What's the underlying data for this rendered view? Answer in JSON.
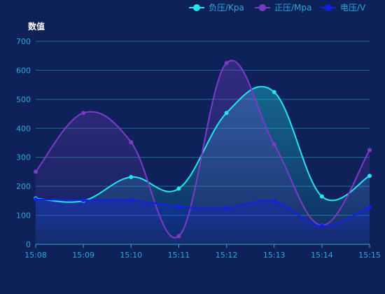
{
  "chart_data": {
    "type": "line",
    "smooth": true,
    "area_fill": true,
    "ylabel": "数值",
    "ylim": [
      0,
      700
    ],
    "y_ticks": [
      0,
      100,
      200,
      300,
      400,
      500,
      600,
      700
    ],
    "categories": [
      "15:08",
      "15:09",
      "15:10",
      "15:11",
      "15:12",
      "15:13",
      "15:14",
      "15:15"
    ],
    "series": [
      {
        "name": "负压/Kpa",
        "color": "#22e6f2",
        "values": [
          158,
          150,
          232,
          192,
          453,
          525,
          165,
          236
        ]
      },
      {
        "name": "正压/Mpa",
        "color": "#7b3bc8",
        "values": [
          250,
          453,
          352,
          28,
          625,
          345,
          65,
          325
        ]
      },
      {
        "name": "电压/V",
        "color": "#1220e6",
        "values": [
          155,
          152,
          152,
          130,
          125,
          148,
          63,
          128
        ]
      }
    ],
    "grid": true,
    "legend_position": "top-right",
    "colors": {
      "background": "#0e2259",
      "axis": "#2aa8d8",
      "grid": "#1b6f93",
      "label": "#ffffff"
    }
  }
}
